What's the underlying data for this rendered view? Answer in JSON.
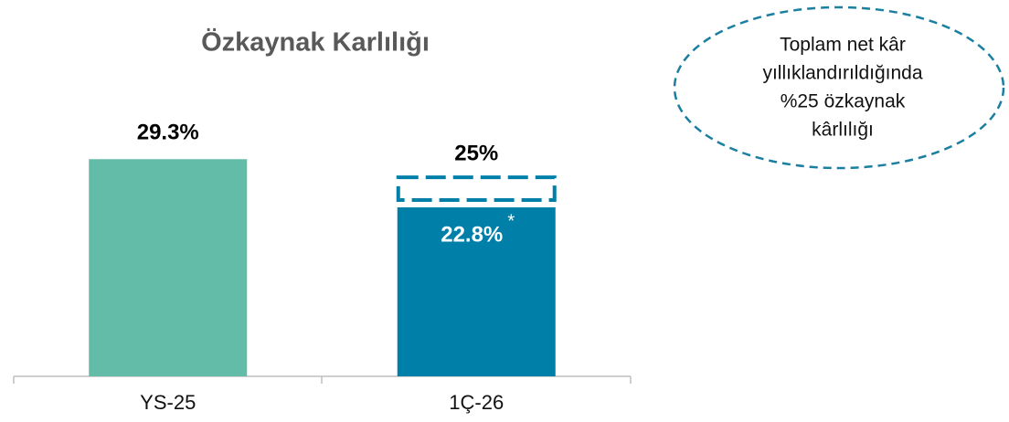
{
  "chart_data": {
    "type": "bar",
    "title": "Özkaynak Karlılığı",
    "categories": [
      "YS-25",
      "1Ç-26"
    ],
    "values": [
      29.3,
      22.8
    ],
    "value_labels": [
      "29.3%",
      "22.8%"
    ],
    "colors": [
      "#63bca7",
      "#007fa8"
    ],
    "annualized": {
      "value": 25,
      "label": "25%",
      "color": "#007fa8"
    },
    "footnote_marker": "*",
    "annotation": [
      "Toplam net kâr",
      "yıllıklandırıldığında",
      "%25 özkaynak",
      "kârlılığı"
    ],
    "ylim": [
      0,
      35
    ]
  }
}
